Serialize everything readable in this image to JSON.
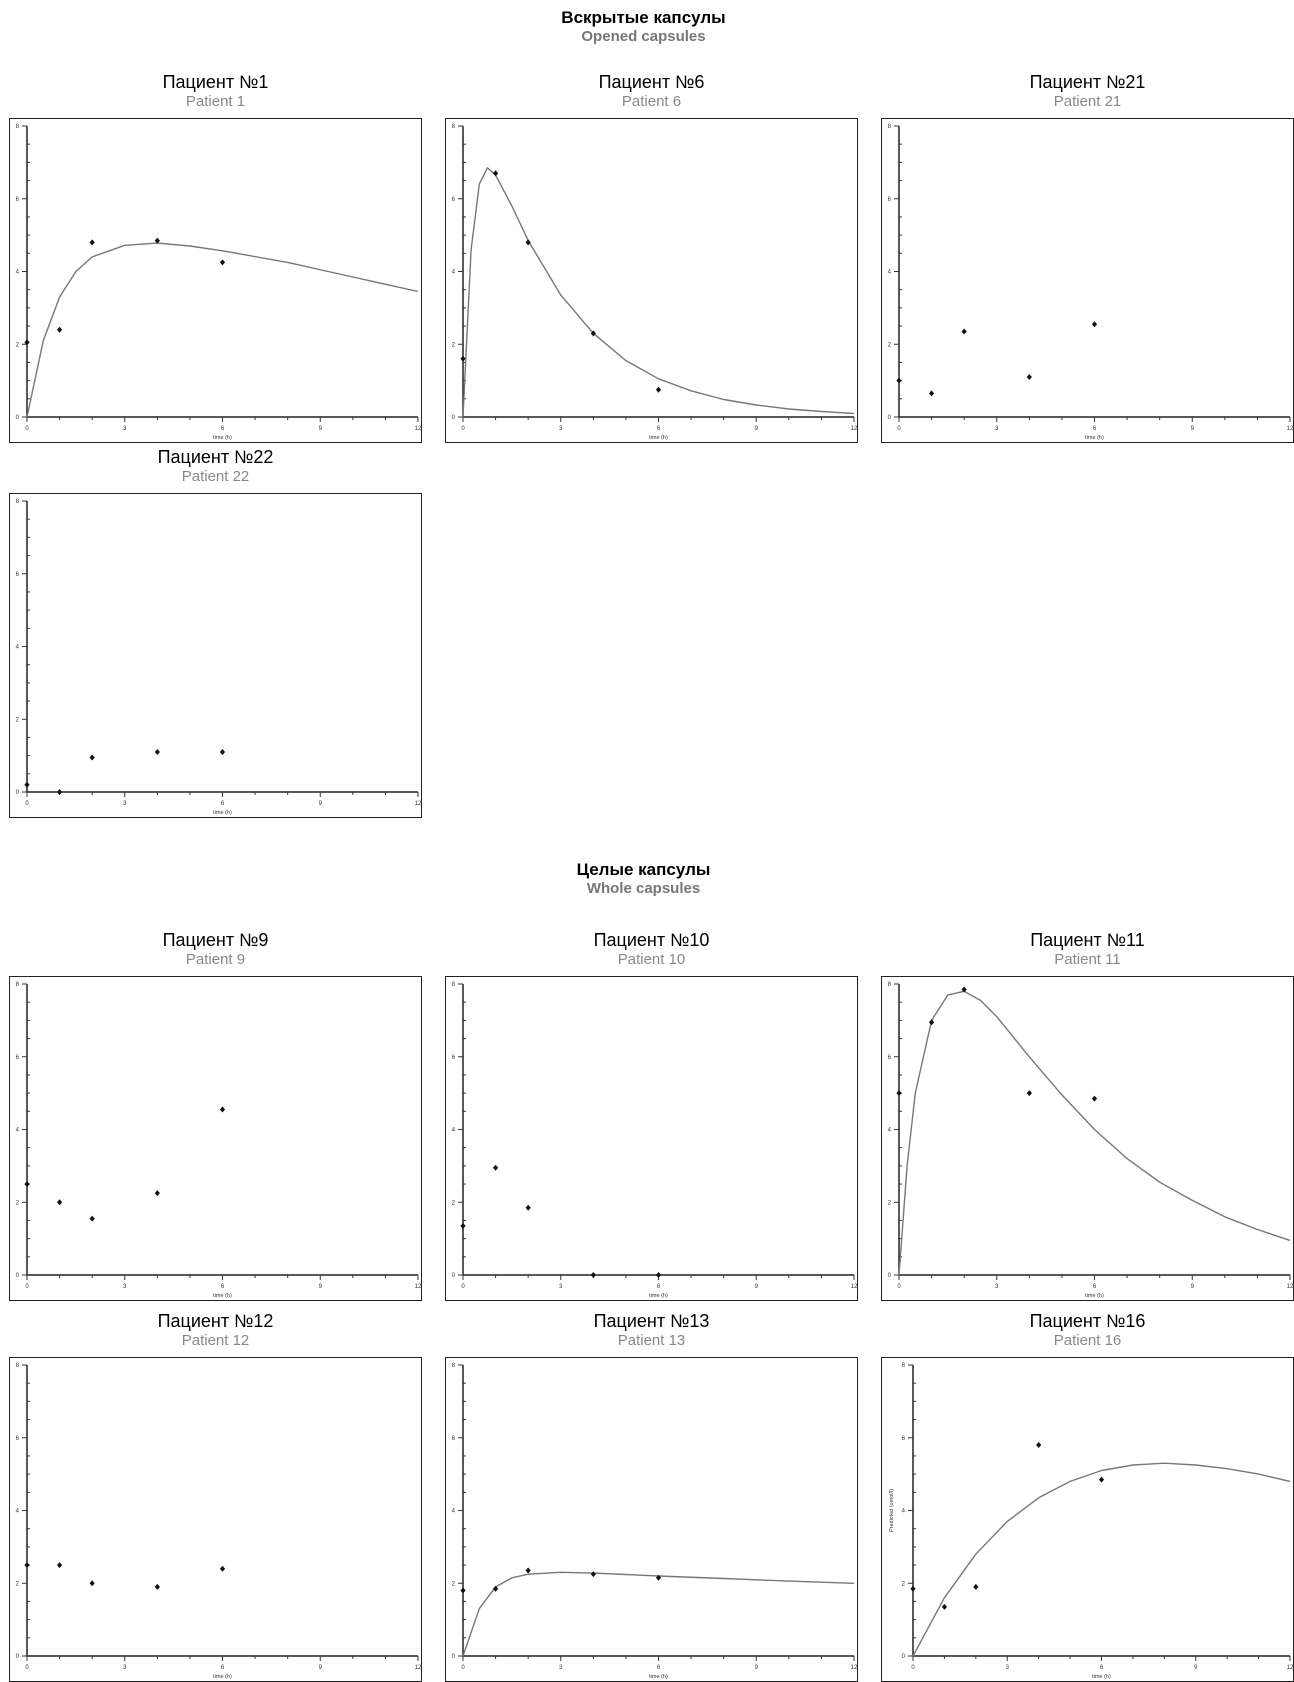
{
  "sections": [
    {
      "title_ru": "Вскрытые капсулы",
      "title_en": "Opened capsules",
      "panels": [
        {
          "title_ru": "Пациент №1",
          "title_en": "Patient 1"
        },
        {
          "title_ru": "Пациент №6",
          "title_en": "Patient 6"
        },
        {
          "title_ru": "Пациент №21",
          "title_en": "Patient 21"
        },
        {
          "title_ru": "Пациент №22",
          "title_en": "Patient 22"
        }
      ]
    },
    {
      "title_ru": "Целые капсулы",
      "title_en": "Whole capsules",
      "panels": [
        {
          "title_ru": "Пациент №9",
          "title_en": "Patient 9"
        },
        {
          "title_ru": "Пациент №10",
          "title_en": "Patient 10"
        },
        {
          "title_ru": "Пациент №11",
          "title_en": "Patient 11"
        },
        {
          "title_ru": "Пациент №12",
          "title_en": "Patient 12"
        },
        {
          "title_ru": "Пациент №13",
          "title_en": "Patient 13"
        },
        {
          "title_ru": "Пациент №16",
          "title_en": "Patient 16"
        }
      ]
    }
  ],
  "chart_data": [
    {
      "type": "scatter",
      "title": "Пациент №1",
      "xlabel": "time (h)",
      "ylabel": "",
      "xlim": [
        0,
        12
      ],
      "ylim": [
        0,
        8
      ],
      "xticks": [
        0,
        3,
        6,
        9,
        12
      ],
      "yticks": [
        0,
        2,
        4,
        6,
        8
      ],
      "points": [
        [
          0,
          2.05
        ],
        [
          1,
          2.4
        ],
        [
          2,
          4.8
        ],
        [
          4,
          4.85
        ],
        [
          6,
          4.25
        ]
      ],
      "fit_curve": [
        [
          0,
          0
        ],
        [
          0.5,
          2.1
        ],
        [
          1,
          3.3
        ],
        [
          1.5,
          4.0
        ],
        [
          2,
          4.4
        ],
        [
          3,
          4.72
        ],
        [
          4,
          4.78
        ],
        [
          5,
          4.7
        ],
        [
          6,
          4.57
        ],
        [
          8,
          4.25
        ],
        [
          10,
          3.85
        ],
        [
          12,
          3.45
        ]
      ]
    },
    {
      "type": "scatter",
      "title": "Пациент №6",
      "xlabel": "time (h)",
      "ylabel": "",
      "xlim": [
        0,
        12
      ],
      "ylim": [
        0,
        8
      ],
      "xticks": [
        0,
        3,
        6,
        9,
        12
      ],
      "yticks": [
        0,
        2,
        4,
        6,
        8
      ],
      "points": [
        [
          0,
          1.6
        ],
        [
          1,
          6.7
        ],
        [
          2,
          4.8
        ],
        [
          4,
          2.3
        ],
        [
          6,
          0.75
        ]
      ],
      "fit_curve": [
        [
          0,
          0
        ],
        [
          0.25,
          4.6
        ],
        [
          0.5,
          6.4
        ],
        [
          0.75,
          6.85
        ],
        [
          1,
          6.65
        ],
        [
          1.5,
          5.8
        ],
        [
          2,
          4.85
        ],
        [
          3,
          3.35
        ],
        [
          4,
          2.3
        ],
        [
          5,
          1.55
        ],
        [
          6,
          1.05
        ],
        [
          7,
          0.72
        ],
        [
          8,
          0.48
        ],
        [
          9,
          0.33
        ],
        [
          10,
          0.22
        ],
        [
          11,
          0.15
        ],
        [
          12,
          0.1
        ]
      ]
    },
    {
      "type": "scatter",
      "title": "Пациент №21",
      "xlabel": "time (h)",
      "ylabel": "",
      "xlim": [
        0,
        12
      ],
      "ylim": [
        0,
        8
      ],
      "xticks": [
        0,
        3,
        6,
        9,
        12
      ],
      "yticks": [
        0,
        2,
        4,
        6,
        8
      ],
      "points": [
        [
          0,
          1.0
        ],
        [
          1,
          0.65
        ],
        [
          2,
          2.35
        ],
        [
          4,
          1.1
        ],
        [
          6,
          2.55
        ]
      ],
      "fit_curve": []
    },
    {
      "type": "scatter",
      "title": "Пациент №22",
      "xlabel": "time (h)",
      "ylabel": "",
      "xlim": [
        0,
        12
      ],
      "ylim": [
        0,
        8
      ],
      "xticks": [
        0,
        3,
        6,
        9,
        12
      ],
      "yticks": [
        0,
        2,
        4,
        6,
        8
      ],
      "points": [
        [
          0,
          0.2
        ],
        [
          1,
          0.0
        ],
        [
          2,
          0.95
        ],
        [
          4,
          1.1
        ],
        [
          6,
          1.1
        ]
      ],
      "fit_curve": []
    },
    {
      "type": "scatter",
      "title": "Пациент №9",
      "xlabel": "time (h)",
      "ylabel": "",
      "xlim": [
        0,
        12
      ],
      "ylim": [
        0,
        8
      ],
      "xticks": [
        0,
        3,
        6,
        9,
        12
      ],
      "yticks": [
        0,
        2,
        4,
        6,
        8
      ],
      "points": [
        [
          0,
          2.5
        ],
        [
          1,
          2.0
        ],
        [
          2,
          1.55
        ],
        [
          4,
          2.25
        ],
        [
          6,
          4.55
        ]
      ],
      "fit_curve": []
    },
    {
      "type": "scatter",
      "title": "Пациент №10",
      "xlabel": "time (h)",
      "ylabel": "",
      "xlim": [
        0,
        12
      ],
      "ylim": [
        0,
        8
      ],
      "xticks": [
        0,
        3,
        6,
        9,
        12
      ],
      "yticks": [
        0,
        2,
        4,
        6,
        8
      ],
      "points": [
        [
          0,
          1.35
        ],
        [
          1,
          2.95
        ],
        [
          2,
          1.85
        ],
        [
          4,
          0.0
        ],
        [
          6,
          0.0
        ]
      ],
      "fit_curve": []
    },
    {
      "type": "scatter",
      "title": "Пациент №11",
      "xlabel": "time (h)",
      "ylabel": "",
      "xlim": [
        0,
        12
      ],
      "ylim": [
        0,
        8
      ],
      "xticks": [
        0,
        3,
        6,
        9,
        12
      ],
      "yticks": [
        0,
        2,
        4,
        6,
        8
      ],
      "points": [
        [
          0,
          5.0
        ],
        [
          1,
          6.95
        ],
        [
          2,
          7.85
        ],
        [
          4,
          5.0
        ],
        [
          6,
          4.85
        ]
      ],
      "fit_curve": [
        [
          0,
          0
        ],
        [
          0.25,
          3.0
        ],
        [
          0.5,
          5.0
        ],
        [
          1,
          7.0
        ],
        [
          1.5,
          7.7
        ],
        [
          2,
          7.8
        ],
        [
          2.5,
          7.55
        ],
        [
          3,
          7.1
        ],
        [
          4,
          6.0
        ],
        [
          5,
          4.95
        ],
        [
          6,
          4.0
        ],
        [
          7,
          3.2
        ],
        [
          8,
          2.55
        ],
        [
          9,
          2.05
        ],
        [
          10,
          1.6
        ],
        [
          11,
          1.25
        ],
        [
          12,
          0.95
        ]
      ]
    },
    {
      "type": "scatter",
      "title": "Пациент №12",
      "xlabel": "time (h)",
      "ylabel": "",
      "xlim": [
        0,
        12
      ],
      "ylim": [
        0,
        8
      ],
      "xticks": [
        0,
        3,
        6,
        9,
        12
      ],
      "yticks": [
        0,
        2,
        4,
        6,
        8
      ],
      "points": [
        [
          0,
          2.5
        ],
        [
          1,
          2.5
        ],
        [
          2,
          2.0
        ],
        [
          4,
          1.9
        ],
        [
          6,
          2.4
        ]
      ],
      "fit_curve": []
    },
    {
      "type": "scatter",
      "title": "Пациент №13",
      "xlabel": "time (h)",
      "ylabel": "",
      "xlim": [
        0,
        12
      ],
      "ylim": [
        0,
        8
      ],
      "xticks": [
        0,
        3,
        6,
        9,
        12
      ],
      "yticks": [
        0,
        2,
        4,
        6,
        8
      ],
      "points": [
        [
          0,
          1.8
        ],
        [
          1,
          1.85
        ],
        [
          2,
          2.35
        ],
        [
          4,
          2.25
        ],
        [
          6,
          2.15
        ]
      ],
      "fit_curve": [
        [
          0,
          0
        ],
        [
          0.5,
          1.3
        ],
        [
          1,
          1.9
        ],
        [
          1.5,
          2.15
        ],
        [
          2,
          2.25
        ],
        [
          3,
          2.3
        ],
        [
          4,
          2.28
        ],
        [
          5,
          2.24
        ],
        [
          6,
          2.2
        ],
        [
          8,
          2.13
        ],
        [
          10,
          2.06
        ],
        [
          12,
          2.0
        ]
      ]
    },
    {
      "type": "scatter",
      "title": "Пациент №16",
      "xlabel": "time (h)",
      "ylabel": "Predicted (umol/l)",
      "xlim": [
        0,
        12
      ],
      "ylim": [
        0,
        8
      ],
      "xticks": [
        0,
        3,
        6,
        9,
        12
      ],
      "yticks": [
        0,
        2,
        4,
        6,
        8
      ],
      "points": [
        [
          0,
          1.85
        ],
        [
          1,
          1.35
        ],
        [
          2,
          1.9
        ],
        [
          4,
          5.8
        ],
        [
          6,
          4.85
        ]
      ],
      "fit_curve": [
        [
          0,
          0
        ],
        [
          1,
          1.6
        ],
        [
          2,
          2.8
        ],
        [
          3,
          3.7
        ],
        [
          4,
          4.35
        ],
        [
          5,
          4.8
        ],
        [
          6,
          5.1
        ],
        [
          7,
          5.25
        ],
        [
          8,
          5.3
        ],
        [
          9,
          5.25
        ],
        [
          10,
          5.15
        ],
        [
          11,
          5.0
        ],
        [
          12,
          4.8
        ]
      ]
    }
  ]
}
